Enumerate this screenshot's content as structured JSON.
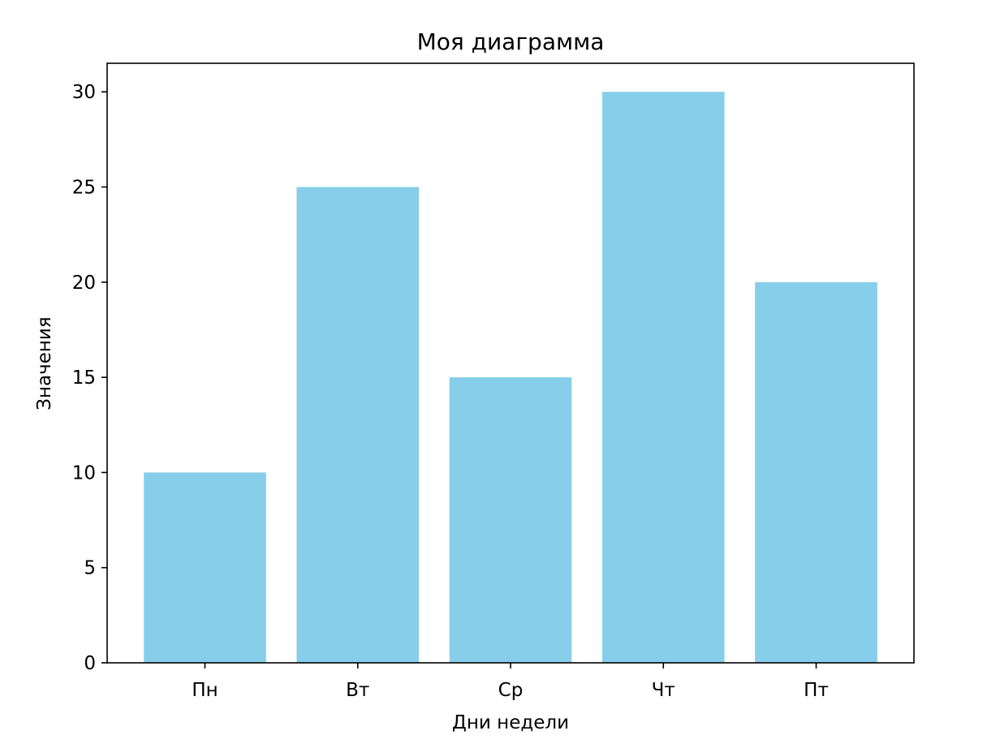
{
  "chart_data": {
    "type": "bar",
    "title": "Моя диаграмма",
    "xlabel": "Дни недели",
    "ylabel": "Значения",
    "categories": [
      "Пн",
      "Вт",
      "Ср",
      "Чт",
      "Пт"
    ],
    "values": [
      10,
      25,
      15,
      30,
      20
    ],
    "ylim": [
      0,
      31.5
    ],
    "yticks": [
      0,
      5,
      10,
      15,
      20,
      25,
      30
    ],
    "grid": false,
    "bar_color": "#87CEEB"
  }
}
